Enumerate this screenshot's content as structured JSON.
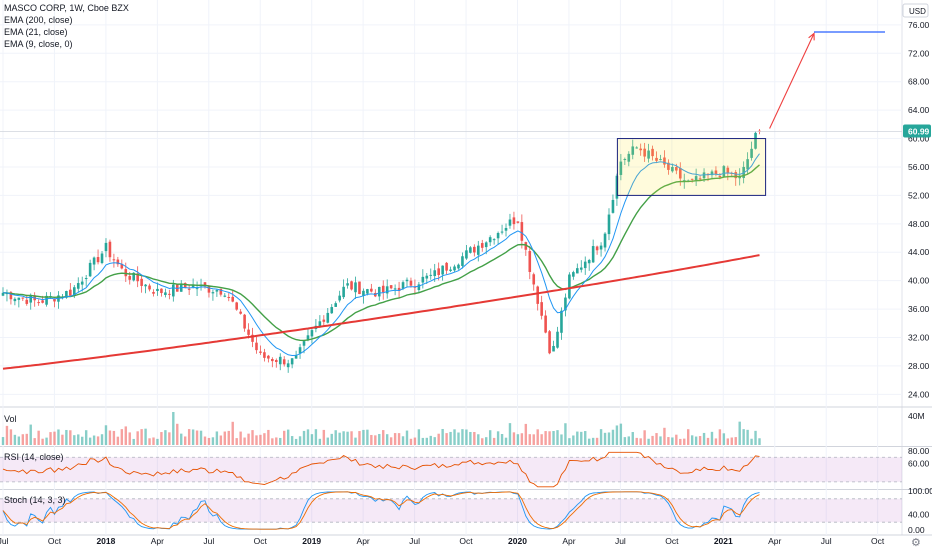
{
  "chart_data": {
    "type": "candlestick",
    "symbol_line": "MASCO CORP, 1W, Cboe BZX",
    "currency": "USD",
    "indicators": [
      "EMA (200, close)",
      "EMA (21, close)",
      "EMA (9, close, 0)"
    ],
    "last_price": "60.99",
    "price_ylim": [
      22.5,
      79.5
    ],
    "price_ticks": [
      "24.00",
      "28.00",
      "32.00",
      "36.00",
      "40.00",
      "44.00",
      "48.00",
      "52.00",
      "56.00",
      "60.00",
      "64.00",
      "68.00",
      "72.00",
      "76.00"
    ],
    "x_ticks": [
      "Jul",
      "Oct",
      "2018",
      "Apr",
      "Jul",
      "Oct",
      "2019",
      "Apr",
      "Jul",
      "Oct",
      "2020",
      "Apr",
      "Jul",
      "Oct",
      "2021",
      "Apr",
      "Jul",
      "Oct"
    ],
    "key_closes": [
      {
        "date": "2017-07",
        "close": 38.3
      },
      {
        "date": "2017-09",
        "close": 37.0
      },
      {
        "date": "2017-11",
        "close": 38.5
      },
      {
        "date": "2018-01",
        "close": 44.6
      },
      {
        "date": "2018-02",
        "close": 41.2
      },
      {
        "date": "2018-04",
        "close": 38.4
      },
      {
        "date": "2018-06",
        "close": 39.2
      },
      {
        "date": "2018-08",
        "close": 38.6
      },
      {
        "date": "2018-10",
        "close": 29.3
      },
      {
        "date": "2018-12",
        "close": 28.6
      },
      {
        "date": "2019-01",
        "close": 32.6
      },
      {
        "date": "2019-03",
        "close": 39.3
      },
      {
        "date": "2019-05",
        "close": 38.3
      },
      {
        "date": "2019-08",
        "close": 40.6
      },
      {
        "date": "2019-10",
        "close": 43.7
      },
      {
        "date": "2020-01",
        "close": 48.9
      },
      {
        "date": "2020-03",
        "close": 29.3
      },
      {
        "date": "2020-04",
        "close": 40.1
      },
      {
        "date": "2020-06",
        "close": 46.0
      },
      {
        "date": "2020-07",
        "close": 56.8
      },
      {
        "date": "2020-08",
        "close": 58.8
      },
      {
        "date": "2020-10",
        "close": 55.3
      },
      {
        "date": "2020-11",
        "close": 53.7
      },
      {
        "date": "2021-01",
        "close": 55.4
      },
      {
        "date": "2021-02",
        "close": 54.3
      },
      {
        "date": "2021-03",
        "close": 60.99
      }
    ],
    "ema200_endpoints": [
      27.6,
      43.6
    ],
    "range_box": {
      "low": 52.0,
      "high": 60.0,
      "from": "2020-07",
      "to": "2021-03"
    },
    "projection": {
      "from_price": 60.99,
      "to_price": 74.8,
      "from": "2021-03",
      "to": "2021-06"
    },
    "target_line_price": 75.0,
    "volume_panel": {
      "label": "Vol",
      "ticks": [
        "40M"
      ]
    },
    "rsi_panel": {
      "label": "RSI (14, close)",
      "ticks": [
        "80.00",
        "60.00"
      ],
      "band": [
        30,
        70
      ]
    },
    "stoch_panel": {
      "label": "Stoch (14, 3, 3)",
      "ticks": [
        "100.00",
        "40.00",
        "0.00"
      ],
      "band": [
        20,
        80
      ]
    }
  }
}
